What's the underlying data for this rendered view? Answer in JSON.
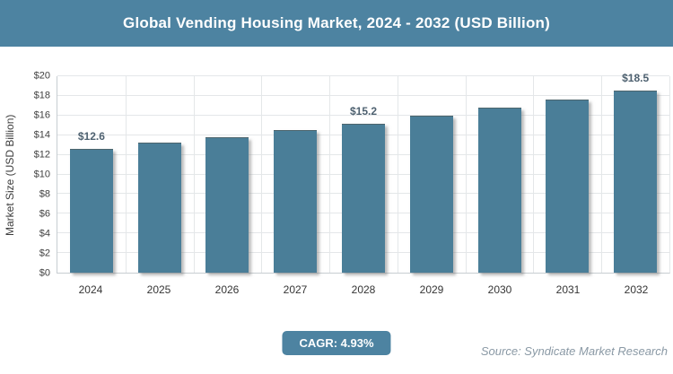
{
  "header": {
    "bg_color": "#4d83a1",
    "text_color": "#ffffff"
  },
  "chart_data": {
    "type": "bar",
    "title": "Global Vending Housing Market, 2024 - 2032 (USD Billion)",
    "categories": [
      "2024",
      "2025",
      "2026",
      "2027",
      "2028",
      "2029",
      "2030",
      "2031",
      "2032"
    ],
    "values": [
      12.6,
      13.2,
      13.8,
      14.5,
      15.2,
      16.0,
      16.8,
      17.6,
      18.5
    ],
    "bar_labels": [
      "$12.6",
      "",
      "",
      "",
      "$15.2",
      "",
      "",
      "",
      "$18.5"
    ],
    "xlabel": "",
    "ylabel": "Market Size (USD Billion)",
    "ylim": [
      0,
      20
    ],
    "ytick_step": 2,
    "ytick_prefix": "$",
    "grid": true,
    "legend": false,
    "bar_color": "#4a7e98",
    "bar_label_color": "#4e6170",
    "gridline_color": "#e4e7e9"
  },
  "footer": {
    "cagr_label": "CAGR: 4.93%",
    "source": "Source: Syndicate Market Research"
  }
}
